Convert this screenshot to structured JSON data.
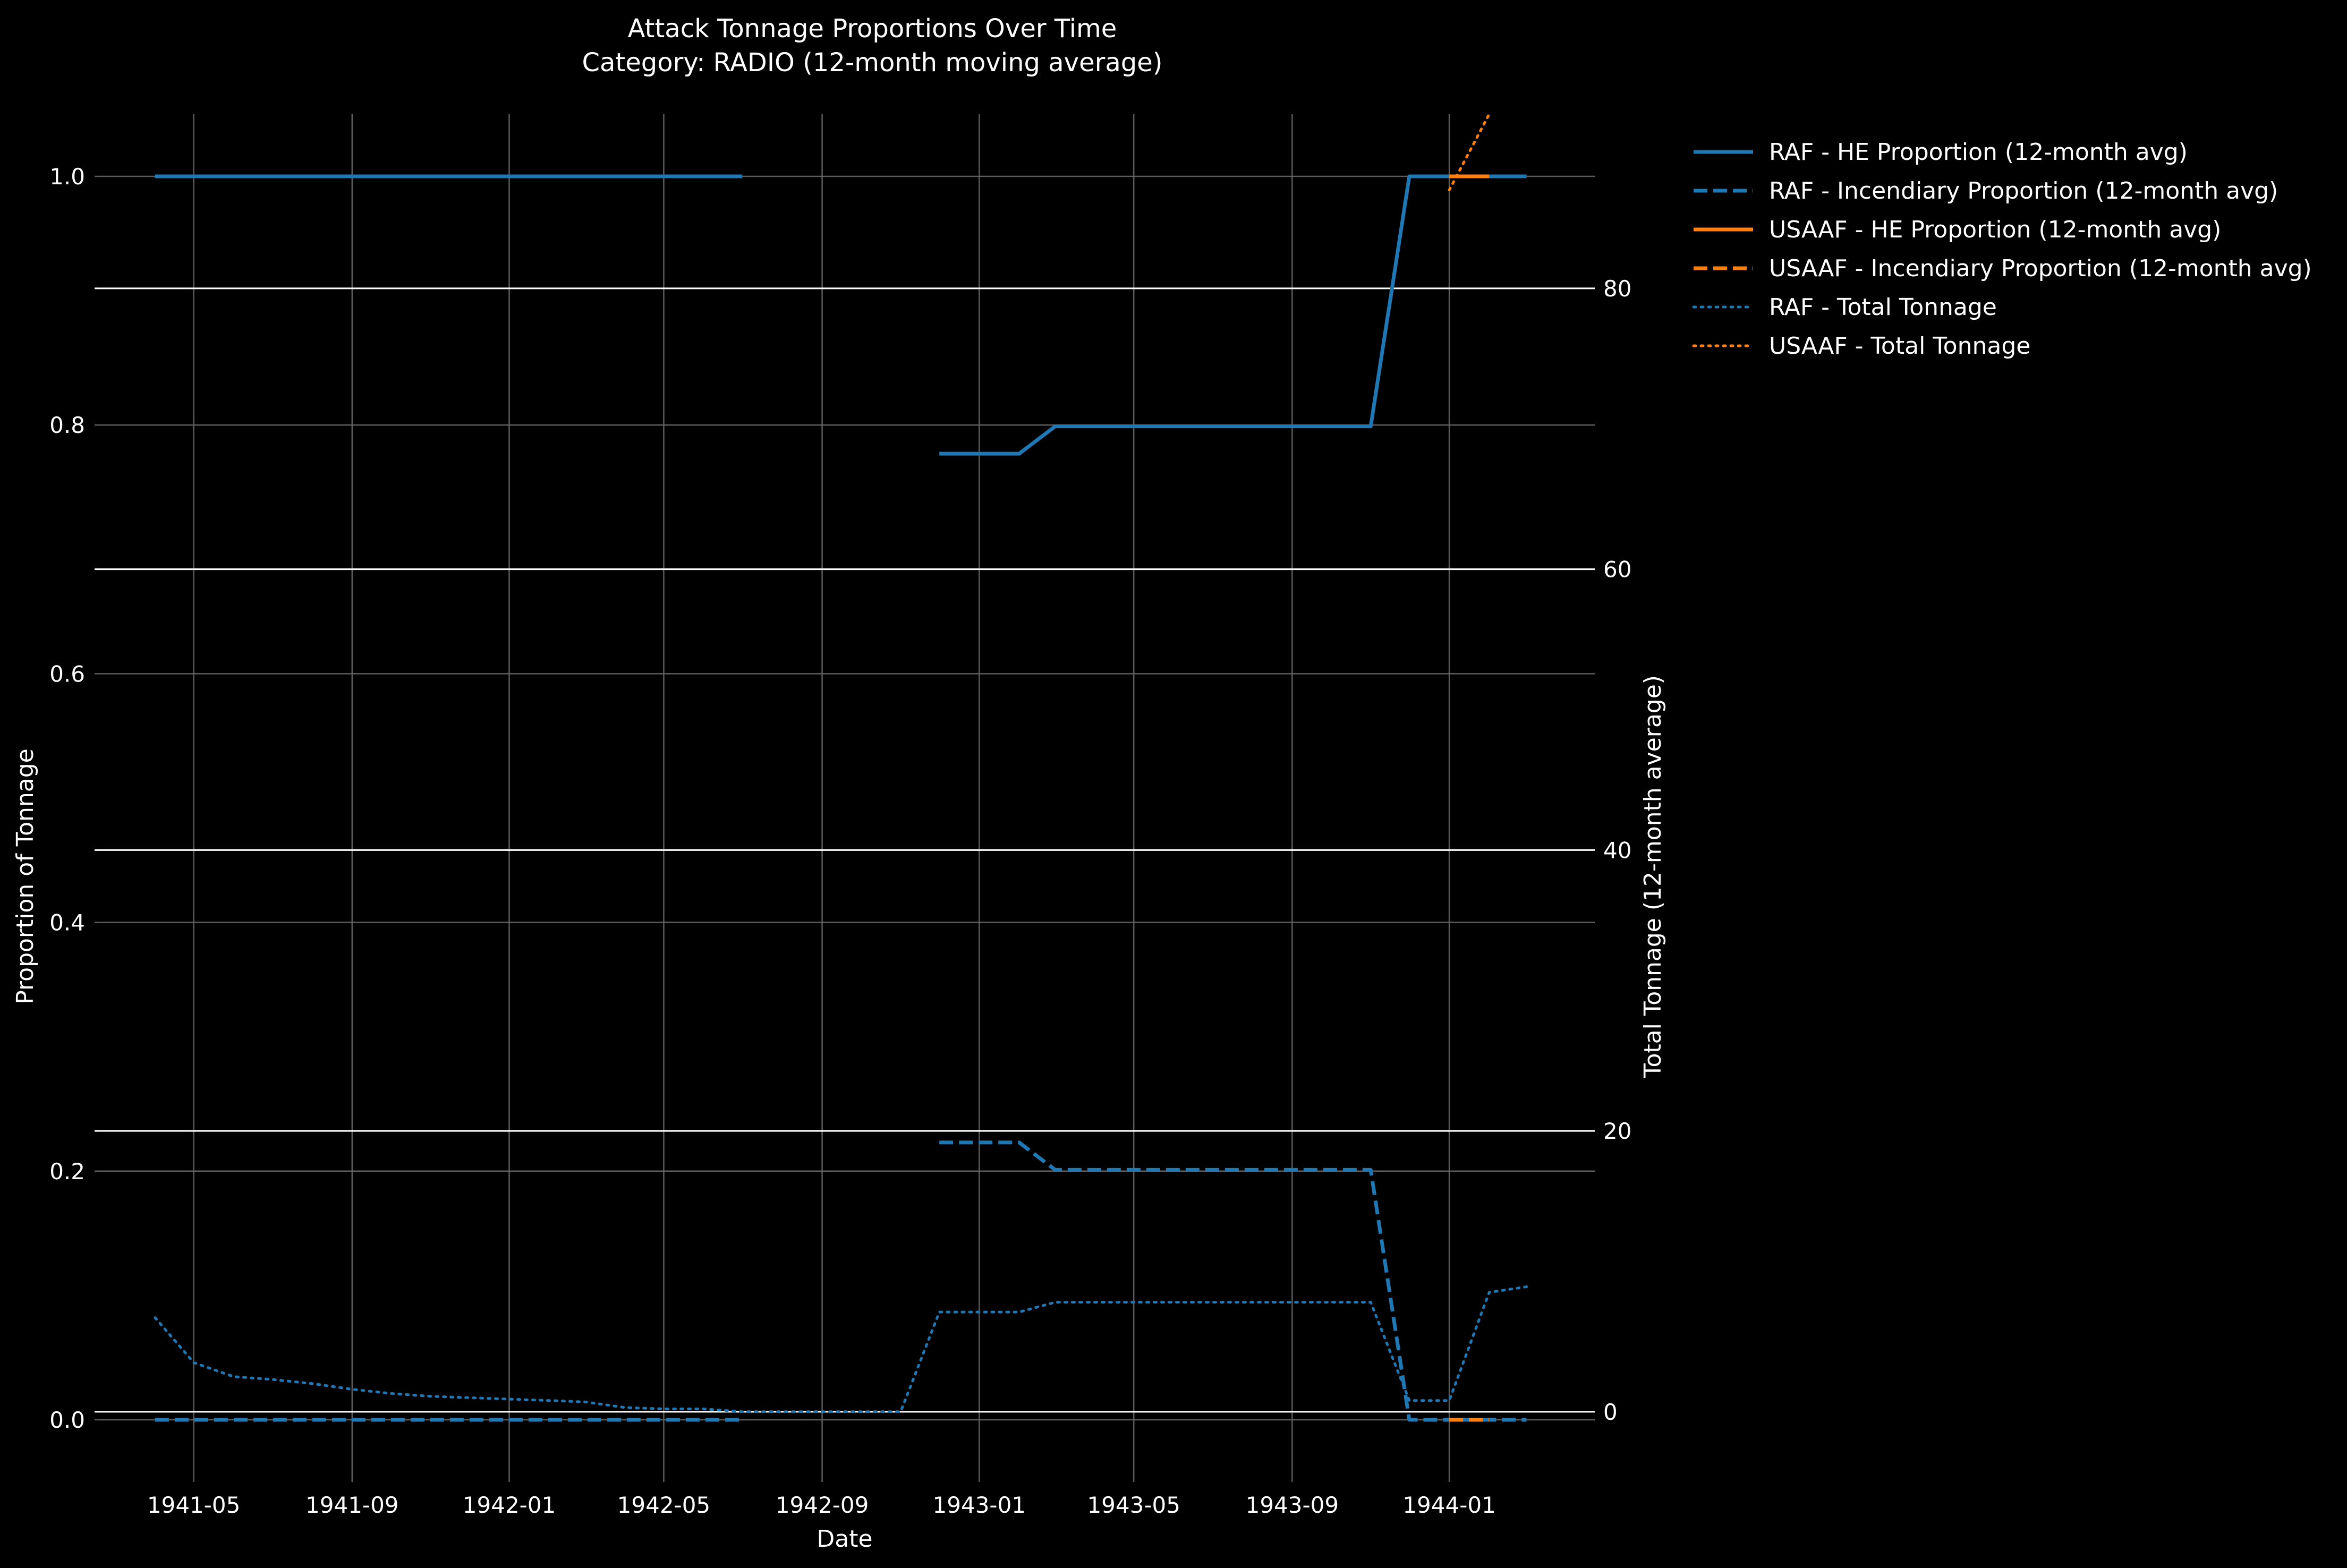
{
  "chart_data": {
    "type": "line",
    "title": "Attack Tonnage Proportions Over Time",
    "subtitle": "Category: RADIO (12-month moving average)",
    "xlabel": "Date",
    "ylabel": "Proportion of Tonnage",
    "y2label": "Total Tonnage (12-month average)",
    "xlim": [
      "1941-02-13",
      "1944-04-23"
    ],
    "ylim": [
      -0.05,
      1.05
    ],
    "y2lim": [
      -5.0,
      92.4
    ],
    "x_ticks": [
      "1941-05",
      "1941-09",
      "1942-01",
      "1942-05",
      "1942-09",
      "1943-01",
      "1943-05",
      "1943-09",
      "1944-01"
    ],
    "y_ticks": [
      "0.0",
      "0.2",
      "0.4",
      "0.6",
      "0.8",
      "1.0"
    ],
    "y2_ticks": [
      "0",
      "20",
      "40",
      "60",
      "80"
    ],
    "grid": true,
    "legend_position": "outside-top-right",
    "colors": {
      "raf": "#1f77b4",
      "usaaf": "#ff7f0e",
      "background": "#000000",
      "grid": "#666666",
      "text": "#ffffff"
    },
    "series": [
      {
        "name": "RAF - HE Proportion (12-month avg)",
        "axis": "left",
        "color": "#1f77b4",
        "style": "solid",
        "points": [
          [
            "1941-04-01",
            1.0
          ],
          [
            "1942-07-01",
            1.0
          ],
          null,
          [
            "1942-12-01",
            0.777
          ],
          [
            "1943-01-01",
            0.777
          ],
          [
            "1943-02-01",
            0.777
          ],
          [
            "1943-03-01",
            0.799
          ],
          [
            "1943-04-01",
            0.799
          ],
          [
            "1943-05-01",
            0.799
          ],
          [
            "1943-06-01",
            0.799
          ],
          [
            "1943-07-01",
            0.799
          ],
          [
            "1943-08-01",
            0.799
          ],
          [
            "1943-09-01",
            0.799
          ],
          [
            "1943-10-01",
            0.799
          ],
          [
            "1943-11-01",
            0.799
          ],
          [
            "1943-12-01",
            1.0
          ],
          [
            "1944-01-01",
            1.0
          ],
          [
            "1944-02-01",
            1.0
          ],
          [
            "1944-03-01",
            1.0
          ]
        ]
      },
      {
        "name": "RAF - Incendiary Proportion (12-month avg)",
        "axis": "left",
        "color": "#1f77b4",
        "style": "dashed",
        "points": [
          [
            "1941-04-01",
            0.0
          ],
          [
            "1942-07-01",
            0.0
          ],
          null,
          [
            "1942-12-01",
            0.223
          ],
          [
            "1943-01-01",
            0.223
          ],
          [
            "1943-02-01",
            0.223
          ],
          [
            "1943-03-01",
            0.201
          ],
          [
            "1943-04-01",
            0.201
          ],
          [
            "1943-05-01",
            0.201
          ],
          [
            "1943-06-01",
            0.201
          ],
          [
            "1943-07-01",
            0.201
          ],
          [
            "1943-08-01",
            0.201
          ],
          [
            "1943-09-01",
            0.201
          ],
          [
            "1943-10-01",
            0.201
          ],
          [
            "1943-11-01",
            0.201
          ],
          [
            "1943-12-01",
            0.0
          ],
          [
            "1944-01-01",
            0.0
          ],
          [
            "1944-02-01",
            0.0
          ],
          [
            "1944-03-01",
            0.0
          ]
        ]
      },
      {
        "name": "USAAF - HE Proportion (12-month avg)",
        "axis": "left",
        "color": "#ff7f0e",
        "style": "solid",
        "points": [
          [
            "1944-01-01",
            1.0
          ],
          [
            "1944-02-01",
            1.0
          ]
        ]
      },
      {
        "name": "USAAF - Incendiary Proportion (12-month avg)",
        "axis": "left",
        "color": "#ff7f0e",
        "style": "dashed",
        "points": [
          [
            "1944-01-01",
            0.0
          ],
          [
            "1944-02-01",
            0.0
          ]
        ]
      },
      {
        "name": "RAF - Total Tonnage",
        "axis": "right",
        "color": "#1f77b4",
        "style": "dotted",
        "points": [
          [
            "1941-04-01",
            6.7
          ],
          [
            "1941-05-01",
            3.5
          ],
          [
            "1941-06-01",
            2.5
          ],
          [
            "1941-07-01",
            2.3
          ],
          [
            "1941-08-01",
            2.0
          ],
          [
            "1941-09-01",
            1.6
          ],
          [
            "1941-10-01",
            1.3
          ],
          [
            "1941-11-01",
            1.1
          ],
          [
            "1941-12-01",
            1.0
          ],
          [
            "1942-01-01",
            0.9
          ],
          [
            "1942-02-01",
            0.8
          ],
          [
            "1942-03-01",
            0.7
          ],
          [
            "1942-04-01",
            0.3
          ],
          [
            "1942-05-01",
            0.2
          ],
          [
            "1942-06-01",
            0.2
          ],
          [
            "1942-07-01",
            0.0
          ],
          [
            "1942-08-01",
            0.0
          ],
          [
            "1942-09-01",
            0.0
          ],
          [
            "1942-10-01",
            0.0
          ],
          [
            "1942-11-01",
            0.0
          ],
          [
            "1942-12-01",
            7.1
          ],
          [
            "1943-01-01",
            7.1
          ],
          [
            "1943-02-01",
            7.1
          ],
          [
            "1943-03-01",
            7.8
          ],
          [
            "1943-04-01",
            7.8
          ],
          [
            "1943-05-01",
            7.8
          ],
          [
            "1943-06-01",
            7.8
          ],
          [
            "1943-07-01",
            7.8
          ],
          [
            "1943-08-01",
            7.8
          ],
          [
            "1943-09-01",
            7.8
          ],
          [
            "1943-10-01",
            7.8
          ],
          [
            "1943-11-01",
            7.8
          ],
          [
            "1943-12-01",
            0.8
          ],
          [
            "1944-01-01",
            0.8
          ],
          [
            "1944-02-01",
            8.5
          ],
          [
            "1944-03-01",
            8.9
          ]
        ]
      },
      {
        "name": "USAAF - Total Tonnage",
        "axis": "right",
        "color": "#ff7f0e",
        "style": "dotted",
        "points": [
          [
            "1944-01-01",
            87.0
          ],
          [
            "1944-02-01",
            92.4
          ]
        ]
      }
    ]
  }
}
